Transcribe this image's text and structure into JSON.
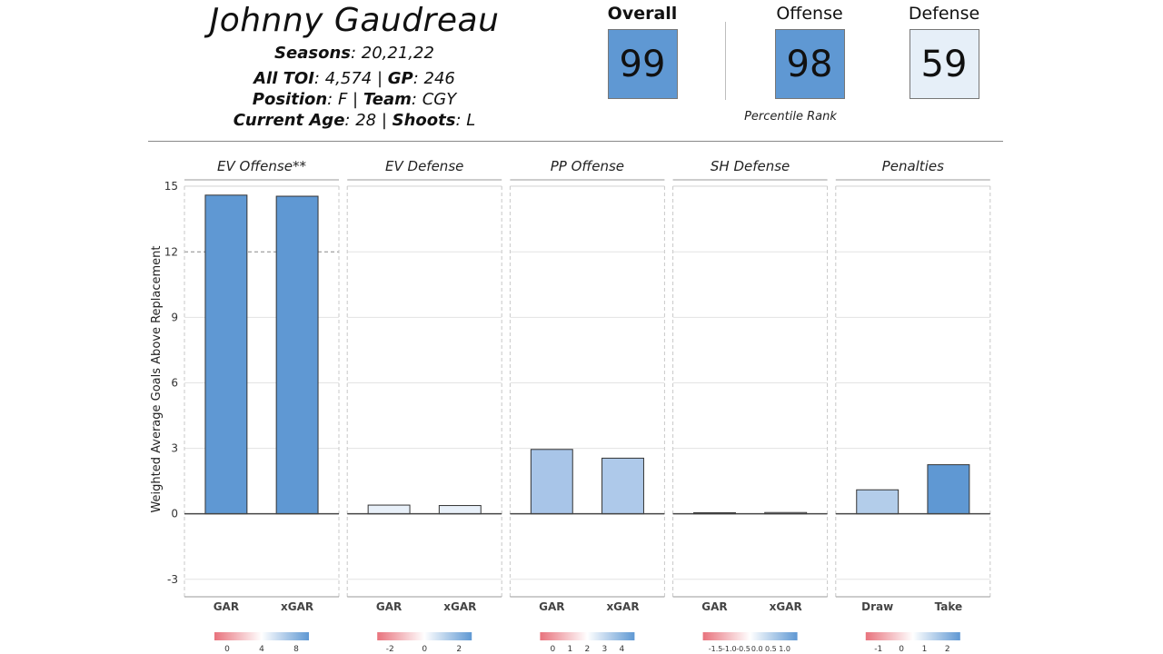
{
  "player": {
    "name": "Johnny Gaudreau",
    "seasons_label": "Seasons",
    "seasons": "20,21,22",
    "toi_label": "All TOI",
    "toi": "4,574",
    "gp_label": "GP",
    "gp": "246",
    "position_label": "Position",
    "position": "F",
    "team_label": "Team",
    "team": "CGY",
    "age_label": "Current Age",
    "age": "28",
    "shoots_label": "Shoots",
    "shoots": "L"
  },
  "ranks": {
    "overall_label": "Overall",
    "overall": "99",
    "offense_label": "Offense",
    "offense": "98",
    "defense_label": "Defense",
    "defense": "59",
    "caption": "Percentile Rank",
    "colors": {
      "overall": "#5f98d3",
      "offense": "#5f98d3",
      "defense": "#e6eff8"
    }
  },
  "chart_data": {
    "type": "bar",
    "ylabel": "Weighted Average Goals Above Replacement",
    "ylim": [
      -3.8,
      15.3
    ],
    "yticks": [
      -3,
      0,
      3,
      6,
      9,
      12,
      15
    ],
    "reference_line": 12,
    "grid": true,
    "panels": [
      {
        "title": "EV Offense**",
        "categories": [
          "GAR",
          "xGAR"
        ],
        "values": [
          14.6,
          14.55
        ],
        "colors": [
          "#5f98d3",
          "#5f98d3"
        ],
        "reference": true,
        "legend_ticks": [
          "0",
          "4",
          "8"
        ]
      },
      {
        "title": "EV Defense",
        "categories": [
          "GAR",
          "xGAR"
        ],
        "values": [
          0.4,
          0.38
        ],
        "colors": [
          "#e8f0f9",
          "#e8f0f9"
        ],
        "reference": false,
        "legend_ticks": [
          "-2",
          "0",
          "2"
        ]
      },
      {
        "title": "PP Offense",
        "categories": [
          "GAR",
          "xGAR"
        ],
        "values": [
          2.95,
          2.55
        ],
        "colors": [
          "#a8c5e8",
          "#aec9ea"
        ],
        "reference": false,
        "legend_ticks": [
          "0",
          "1",
          "2",
          "3",
          "4"
        ]
      },
      {
        "title": "SH Defense",
        "categories": [
          "GAR",
          "xGAR"
        ],
        "values": [
          0.05,
          0.06
        ],
        "colors": [
          "#f5f7fa",
          "#f5f7fa"
        ],
        "reference": false,
        "legend_ticks": [
          "-1.5",
          "-1.0",
          "-0.5",
          "0.0",
          "0.5",
          "1.0"
        ]
      },
      {
        "title": "Penalties",
        "categories": [
          "Draw",
          "Take"
        ],
        "values": [
          1.1,
          2.25
        ],
        "colors": [
          "#b3cdea",
          "#5f98d3"
        ],
        "reference": false,
        "legend_ticks": [
          "-1",
          "0",
          "1",
          "2"
        ]
      }
    ],
    "legend_gradient": [
      "#e8737d",
      "#ffffff",
      "#5f98d3"
    ]
  }
}
